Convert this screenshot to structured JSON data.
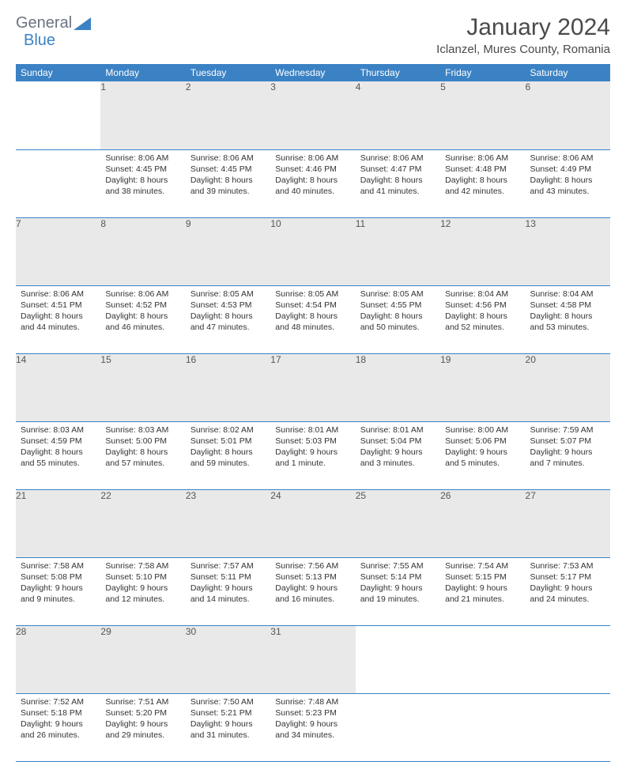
{
  "logo": {
    "part1": "General",
    "part2": "Blue"
  },
  "title": "January 2024",
  "location": "Iclanzel, Mures County, Romania",
  "colors": {
    "header_bg": "#3b82c4",
    "header_fg": "#ffffff",
    "daynum_bg": "#e9e9e9",
    "border": "#3b82c4"
  },
  "weekdays": [
    "Sunday",
    "Monday",
    "Tuesday",
    "Wednesday",
    "Thursday",
    "Friday",
    "Saturday"
  ],
  "weeks": [
    [
      null,
      {
        "n": "1",
        "sr": "Sunrise: 8:06 AM",
        "ss": "Sunset: 4:45 PM",
        "dl": "Daylight: 8 hours and 38 minutes."
      },
      {
        "n": "2",
        "sr": "Sunrise: 8:06 AM",
        "ss": "Sunset: 4:45 PM",
        "dl": "Daylight: 8 hours and 39 minutes."
      },
      {
        "n": "3",
        "sr": "Sunrise: 8:06 AM",
        "ss": "Sunset: 4:46 PM",
        "dl": "Daylight: 8 hours and 40 minutes."
      },
      {
        "n": "4",
        "sr": "Sunrise: 8:06 AM",
        "ss": "Sunset: 4:47 PM",
        "dl": "Daylight: 8 hours and 41 minutes."
      },
      {
        "n": "5",
        "sr": "Sunrise: 8:06 AM",
        "ss": "Sunset: 4:48 PM",
        "dl": "Daylight: 8 hours and 42 minutes."
      },
      {
        "n": "6",
        "sr": "Sunrise: 8:06 AM",
        "ss": "Sunset: 4:49 PM",
        "dl": "Daylight: 8 hours and 43 minutes."
      }
    ],
    [
      {
        "n": "7",
        "sr": "Sunrise: 8:06 AM",
        "ss": "Sunset: 4:51 PM",
        "dl": "Daylight: 8 hours and 44 minutes."
      },
      {
        "n": "8",
        "sr": "Sunrise: 8:06 AM",
        "ss": "Sunset: 4:52 PM",
        "dl": "Daylight: 8 hours and 46 minutes."
      },
      {
        "n": "9",
        "sr": "Sunrise: 8:05 AM",
        "ss": "Sunset: 4:53 PM",
        "dl": "Daylight: 8 hours and 47 minutes."
      },
      {
        "n": "10",
        "sr": "Sunrise: 8:05 AM",
        "ss": "Sunset: 4:54 PM",
        "dl": "Daylight: 8 hours and 48 minutes."
      },
      {
        "n": "11",
        "sr": "Sunrise: 8:05 AM",
        "ss": "Sunset: 4:55 PM",
        "dl": "Daylight: 8 hours and 50 minutes."
      },
      {
        "n": "12",
        "sr": "Sunrise: 8:04 AM",
        "ss": "Sunset: 4:56 PM",
        "dl": "Daylight: 8 hours and 52 minutes."
      },
      {
        "n": "13",
        "sr": "Sunrise: 8:04 AM",
        "ss": "Sunset: 4:58 PM",
        "dl": "Daylight: 8 hours and 53 minutes."
      }
    ],
    [
      {
        "n": "14",
        "sr": "Sunrise: 8:03 AM",
        "ss": "Sunset: 4:59 PM",
        "dl": "Daylight: 8 hours and 55 minutes."
      },
      {
        "n": "15",
        "sr": "Sunrise: 8:03 AM",
        "ss": "Sunset: 5:00 PM",
        "dl": "Daylight: 8 hours and 57 minutes."
      },
      {
        "n": "16",
        "sr": "Sunrise: 8:02 AM",
        "ss": "Sunset: 5:01 PM",
        "dl": "Daylight: 8 hours and 59 minutes."
      },
      {
        "n": "17",
        "sr": "Sunrise: 8:01 AM",
        "ss": "Sunset: 5:03 PM",
        "dl": "Daylight: 9 hours and 1 minute."
      },
      {
        "n": "18",
        "sr": "Sunrise: 8:01 AM",
        "ss": "Sunset: 5:04 PM",
        "dl": "Daylight: 9 hours and 3 minutes."
      },
      {
        "n": "19",
        "sr": "Sunrise: 8:00 AM",
        "ss": "Sunset: 5:06 PM",
        "dl": "Daylight: 9 hours and 5 minutes."
      },
      {
        "n": "20",
        "sr": "Sunrise: 7:59 AM",
        "ss": "Sunset: 5:07 PM",
        "dl": "Daylight: 9 hours and 7 minutes."
      }
    ],
    [
      {
        "n": "21",
        "sr": "Sunrise: 7:58 AM",
        "ss": "Sunset: 5:08 PM",
        "dl": "Daylight: 9 hours and 9 minutes."
      },
      {
        "n": "22",
        "sr": "Sunrise: 7:58 AM",
        "ss": "Sunset: 5:10 PM",
        "dl": "Daylight: 9 hours and 12 minutes."
      },
      {
        "n": "23",
        "sr": "Sunrise: 7:57 AM",
        "ss": "Sunset: 5:11 PM",
        "dl": "Daylight: 9 hours and 14 minutes."
      },
      {
        "n": "24",
        "sr": "Sunrise: 7:56 AM",
        "ss": "Sunset: 5:13 PM",
        "dl": "Daylight: 9 hours and 16 minutes."
      },
      {
        "n": "25",
        "sr": "Sunrise: 7:55 AM",
        "ss": "Sunset: 5:14 PM",
        "dl": "Daylight: 9 hours and 19 minutes."
      },
      {
        "n": "26",
        "sr": "Sunrise: 7:54 AM",
        "ss": "Sunset: 5:15 PM",
        "dl": "Daylight: 9 hours and 21 minutes."
      },
      {
        "n": "27",
        "sr": "Sunrise: 7:53 AM",
        "ss": "Sunset: 5:17 PM",
        "dl": "Daylight: 9 hours and 24 minutes."
      }
    ],
    [
      {
        "n": "28",
        "sr": "Sunrise: 7:52 AM",
        "ss": "Sunset: 5:18 PM",
        "dl": "Daylight: 9 hours and 26 minutes."
      },
      {
        "n": "29",
        "sr": "Sunrise: 7:51 AM",
        "ss": "Sunset: 5:20 PM",
        "dl": "Daylight: 9 hours and 29 minutes."
      },
      {
        "n": "30",
        "sr": "Sunrise: 7:50 AM",
        "ss": "Sunset: 5:21 PM",
        "dl": "Daylight: 9 hours and 31 minutes."
      },
      {
        "n": "31",
        "sr": "Sunrise: 7:48 AM",
        "ss": "Sunset: 5:23 PM",
        "dl": "Daylight: 9 hours and 34 minutes."
      },
      null,
      null,
      null
    ]
  ]
}
